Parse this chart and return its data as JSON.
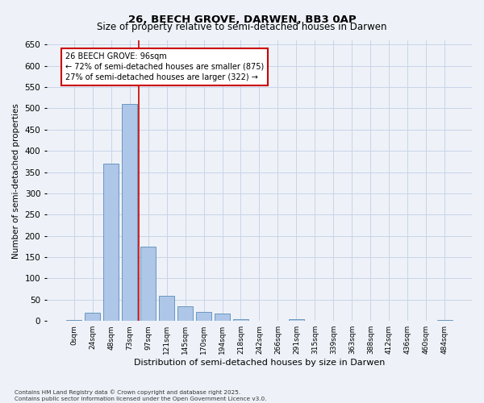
{
  "title": "26, BEECH GROVE, DARWEN, BB3 0AP",
  "subtitle": "Size of property relative to semi-detached houses in Darwen",
  "xlabel": "Distribution of semi-detached houses by size in Darwen",
  "ylabel": "Number of semi-detached properties",
  "bar_labels": [
    "0sqm",
    "24sqm",
    "48sqm",
    "73sqm",
    "97sqm",
    "121sqm",
    "145sqm",
    "170sqm",
    "194sqm",
    "218sqm",
    "242sqm",
    "266sqm",
    "291sqm",
    "315sqm",
    "339sqm",
    "363sqm",
    "388sqm",
    "412sqm",
    "436sqm",
    "460sqm",
    "484sqm"
  ],
  "bar_values": [
    2,
    20,
    370,
    510,
    175,
    60,
    35,
    22,
    18,
    5,
    0,
    0,
    5,
    0,
    0,
    0,
    0,
    0,
    0,
    0,
    3
  ],
  "bar_color": "#aec6e8",
  "bar_edge_color": "#5b8db8",
  "ylim": [
    0,
    660
  ],
  "yticks": [
    0,
    50,
    100,
    150,
    200,
    250,
    300,
    350,
    400,
    450,
    500,
    550,
    600,
    650
  ],
  "property_line_x": 3.5,
  "annotation_text": "26 BEECH GROVE: 96sqm\n← 72% of semi-detached houses are smaller (875)\n27% of semi-detached houses are larger (322) →",
  "annotation_box_color": "#cc0000",
  "footer_text": "Contains HM Land Registry data © Crown copyright and database right 2025.\nContains public sector information licensed under the Open Government Licence v3.0.",
  "background_color": "#eef2f8",
  "grid_color": "#c8d4e8"
}
